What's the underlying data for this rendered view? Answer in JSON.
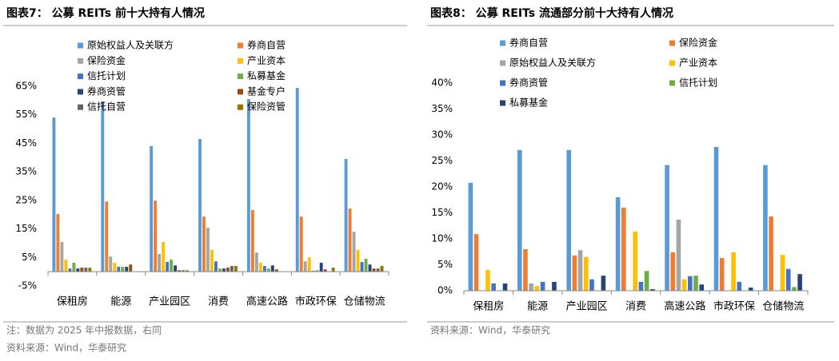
{
  "chart_data": [
    {
      "type": "bar",
      "title": "图表7：  公募 REITs 前十大持有人情况",
      "categories": [
        "保租房",
        "能源",
        "产业园区",
        "消费",
        "高速公路",
        "市政环保",
        "仓储物流"
      ],
      "series": [
        {
          "name": "原始权益人及关联方",
          "color": "#5b9bd5",
          "values": [
            54,
            59.7,
            44,
            46.5,
            60.5,
            64.4,
            39.5
          ]
        },
        {
          "name": "券商自营",
          "color": "#ed7d31",
          "values": [
            20.2,
            24.6,
            24.9,
            19.3,
            21.6,
            19.3,
            22.1
          ]
        },
        {
          "name": "保险资金",
          "color": "#a5a5a5",
          "values": [
            10.4,
            5.3,
            6.2,
            15.4,
            6.7,
            3.6,
            14
          ]
        },
        {
          "name": "产业资本",
          "color": "#ffc000",
          "values": [
            4.2,
            3.1,
            10.4,
            7.6,
            3.1,
            5,
            7.6
          ]
        },
        {
          "name": "信托计划",
          "color": "#4472c4",
          "values": [
            1.1,
            1.7,
            3.4,
            3.6,
            2,
            0.3,
            3.4
          ]
        },
        {
          "name": "私募基金",
          "color": "#70ad47",
          "values": [
            3.1,
            1.7,
            4.2,
            1.1,
            1.1,
            0.5,
            4.5
          ]
        },
        {
          "name": "券商资管",
          "color": "#264478",
          "values": [
            1.1,
            1.7,
            2.2,
            1.1,
            2.2,
            3.1,
            2.5
          ]
        },
        {
          "name": "基金专户",
          "color": "#9e480e",
          "values": [
            1.4,
            2.5,
            0.5,
            1.4,
            0.8,
            0.8,
            1.1
          ]
        },
        {
          "name": "信托自营",
          "color": "#636363",
          "values": [
            1.4,
            0,
            0.5,
            2,
            0,
            0,
            1.1
          ]
        },
        {
          "name": "保险资管",
          "color": "#997300",
          "values": [
            1.4,
            0,
            0.5,
            2,
            0,
            1.4,
            2
          ]
        }
      ],
      "ylim": [
        -5,
        65
      ],
      "yticks": [
        {
          "value": -5,
          "label": "-5%"
        },
        {
          "value": 5,
          "label": "5%"
        },
        {
          "value": 15,
          "label": "15%"
        },
        {
          "value": 25,
          "label": "25%"
        },
        {
          "value": 35,
          "label": "35%"
        },
        {
          "value": 45,
          "label": "45%"
        },
        {
          "value": 55,
          "label": "55%"
        },
        {
          "value": 65,
          "label": "65%"
        }
      ],
      "grid": false,
      "legend": "top",
      "notes": [
        "注：数据为 2025 年中报数据，右同",
        "资料来源：Wind，华泰研究"
      ]
    },
    {
      "type": "bar",
      "title": "图表8：  公募 REITs 流通部分前十大持有人情况",
      "categories": [
        "保租房",
        "能源",
        "产业园区",
        "消费",
        "高速公路",
        "市政环保",
        "仓储物流"
      ],
      "series": [
        {
          "name": "券商自营",
          "color": "#5b9bd5",
          "values": [
            20.8,
            27.1,
            27.1,
            18,
            24.2,
            27.7,
            24.2
          ]
        },
        {
          "name": "保险资金",
          "color": "#ed7d31",
          "values": [
            10.9,
            8,
            6.8,
            16,
            7.4,
            6.3,
            14.3
          ]
        },
        {
          "name": "原始权益人及关联方",
          "color": "#a5a5a5",
          "values": [
            0,
            1.4,
            7.8,
            0,
            13.7,
            0,
            0
          ]
        },
        {
          "name": "产业资本",
          "color": "#ffc000",
          "values": [
            4,
            0.9,
            6.5,
            11.4,
            2.2,
            7.4,
            6.9
          ]
        },
        {
          "name": "券商资管",
          "color": "#4472c4",
          "values": [
            1.4,
            1.7,
            2.2,
            1.7,
            2.8,
            1.7,
            4.2
          ]
        },
        {
          "name": "信托计划",
          "color": "#70ad47",
          "values": [
            0,
            0,
            0,
            3.8,
            2.9,
            0,
            0.7
          ]
        },
        {
          "name": "私募基金",
          "color": "#264478",
          "values": [
            1.4,
            1.7,
            2.9,
            0.3,
            1.2,
            0.6,
            3.2
          ]
        }
      ],
      "ylim": [
        0,
        40
      ],
      "yticks": [
        {
          "value": 0,
          "label": "0%"
        },
        {
          "value": 5,
          "label": "5%"
        },
        {
          "value": 10,
          "label": "10%"
        },
        {
          "value": 15,
          "label": "15%"
        },
        {
          "value": 20,
          "label": "20%"
        },
        {
          "value": 25,
          "label": "25%"
        },
        {
          "value": 30,
          "label": "30%"
        },
        {
          "value": 35,
          "label": "35%"
        },
        {
          "value": 40,
          "label": "40%"
        }
      ],
      "grid": false,
      "legend": "top",
      "notes": [
        "资料来源：Wind，华泰研究"
      ]
    }
  ]
}
